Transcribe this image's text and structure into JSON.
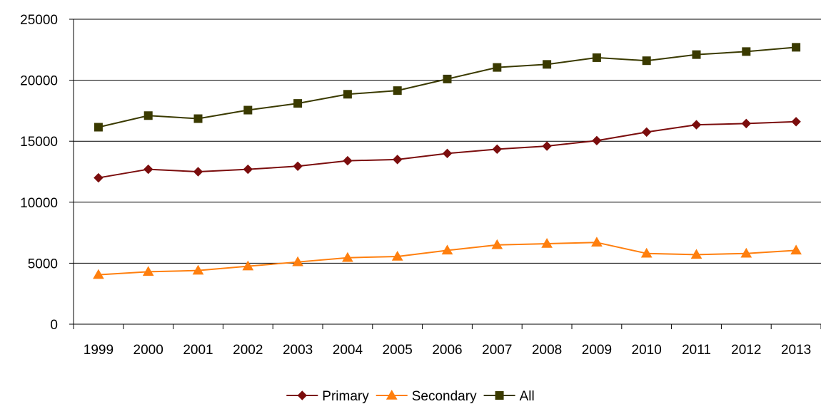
{
  "chart_data": {
    "type": "line",
    "title": "",
    "xlabel": "",
    "ylabel": "",
    "x": [
      "1999",
      "2000",
      "2001",
      "2002",
      "2003",
      "2004",
      "2005",
      "2006",
      "2007",
      "2008",
      "2009",
      "2010",
      "2011",
      "2012",
      "2013"
    ],
    "ylim": [
      0,
      25000
    ],
    "yticks": [
      0,
      5000,
      10000,
      15000,
      20000,
      25000
    ],
    "grid": "horizontal",
    "legend_position": "bottom",
    "series": [
      {
        "name": "Primary",
        "color": "#7b0d0d",
        "marker": "diamond",
        "values": [
          12000,
          12700,
          12500,
          12700,
          12950,
          13400,
          13500,
          14000,
          14350,
          14600,
          15050,
          15750,
          16350,
          16450,
          16600
        ]
      },
      {
        "name": "Secondary",
        "color": "#ff7f0e",
        "marker": "triangle",
        "values": [
          4050,
          4300,
          4400,
          4750,
          5100,
          5450,
          5550,
          6050,
          6500,
          6600,
          6700,
          5800,
          5700,
          5800,
          6050
        ]
      },
      {
        "name": "All",
        "color": "#3a3a00",
        "marker": "square",
        "values": [
          16150,
          17100,
          16850,
          17550,
          18100,
          18850,
          19150,
          20100,
          21050,
          21300,
          21850,
          21600,
          22100,
          22350,
          22700
        ]
      }
    ]
  }
}
